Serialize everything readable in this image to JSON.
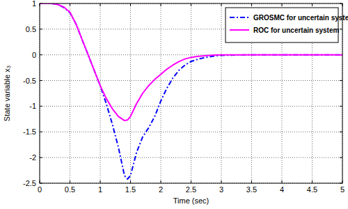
{
  "chart_data": {
    "type": "line",
    "xlabel": "Time (sec)",
    "ylabel": "State variable x₃",
    "x": [
      0,
      0.1,
      0.2,
      0.3,
      0.4,
      0.5,
      0.6,
      0.7,
      0.8,
      0.9,
      1,
      1.1,
      1.2,
      1.3,
      1.4,
      1.45,
      1.5,
      1.6,
      1.7,
      1.8,
      1.9,
      2,
      2.1,
      2.2,
      2.3,
      2.4,
      2.5,
      2.6,
      2.7,
      2.8,
      2.9,
      3,
      3.5,
      4,
      4.5,
      5
    ],
    "series": [
      {
        "name": "GROSMC for uncertain system",
        "color": "#0000ff",
        "line_style": "dashdot",
        "values": [
          1,
          1,
          1,
          0.98,
          0.92,
          0.82,
          0.6,
          0.3,
          0,
          -0.3,
          -0.6,
          -0.95,
          -1.35,
          -1.8,
          -2.35,
          -2.42,
          -2.35,
          -1.9,
          -1.6,
          -1.42,
          -1.2,
          -0.9,
          -0.65,
          -0.45,
          -0.3,
          -0.2,
          -0.13,
          -0.09,
          -0.06,
          -0.04,
          -0.02,
          -0.01,
          0,
          0,
          0,
          0
        ]
      },
      {
        "name": "ROC for uncertain system",
        "color": "#ff00ff",
        "line_style": "solid",
        "values": [
          1,
          1,
          1,
          0.98,
          0.93,
          0.83,
          0.6,
          0.3,
          0,
          -0.3,
          -0.6,
          -0.85,
          -1.05,
          -1.2,
          -1.28,
          -1.27,
          -1.2,
          -0.95,
          -0.75,
          -0.6,
          -0.48,
          -0.38,
          -0.28,
          -0.2,
          -0.13,
          -0.08,
          -0.05,
          -0.03,
          -0.02,
          -0.01,
          -0.005,
          0,
          0,
          0,
          0,
          0
        ]
      }
    ],
    "xlim": [
      0,
      5
    ],
    "ylim": [
      -2.5,
      1
    ],
    "xticks": [
      0,
      0.5,
      1,
      1.5,
      2,
      2.5,
      3,
      3.5,
      4,
      4.5,
      5
    ],
    "yticks": [
      -2.5,
      -2,
      -1.5,
      -1,
      -0.5,
      0,
      0.5,
      1
    ],
    "grid": true,
    "legend": "upper right"
  }
}
